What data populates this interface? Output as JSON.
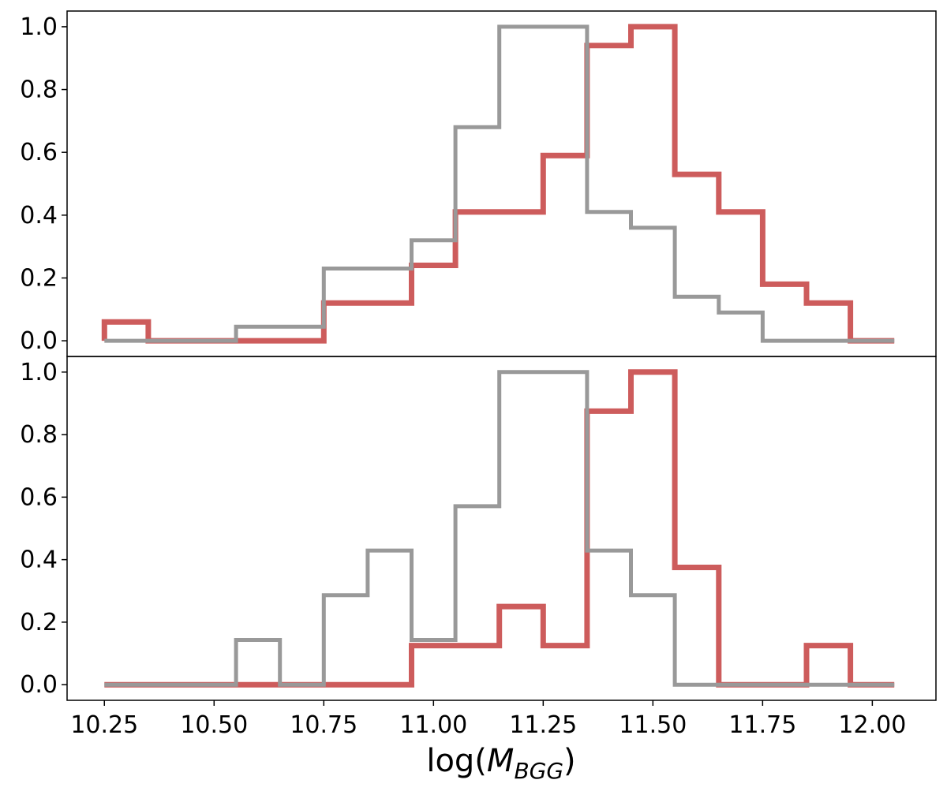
{
  "chart_data": [
    {
      "type": "line",
      "plot_style": "step histogram",
      "panel": "top",
      "bin_edges": [
        10.25,
        10.35,
        10.45,
        10.55,
        10.65,
        10.75,
        10.85,
        10.95,
        11.05,
        11.15,
        11.25,
        11.35,
        11.45,
        11.55,
        11.65,
        11.75,
        11.85,
        11.95,
        12.05
      ],
      "series": [
        {
          "color": "#cd5c5c",
          "values": [
            0.06,
            0.0,
            0.0,
            0.0,
            0.0,
            0.12,
            0.12,
            0.24,
            0.41,
            0.41,
            0.59,
            0.94,
            1.0,
            0.53,
            0.41,
            0.18,
            0.12,
            0.0
          ]
        },
        {
          "color": "#999999",
          "values": [
            0.0,
            0.0,
            0.0,
            0.045,
            0.045,
            0.23,
            0.23,
            0.32,
            0.68,
            1.0,
            1.0,
            0.41,
            0.36,
            0.14,
            0.09,
            0.0,
            0.0,
            0.0
          ]
        }
      ],
      "xlim": [
        10.165,
        12.145
      ],
      "ylim": [
        -0.05,
        1.05
      ],
      "yticks": [
        "0.0",
        "0.2",
        "0.4",
        "0.6",
        "0.8",
        "1.0"
      ],
      "xlabel": "",
      "ylabel": "",
      "grid": false
    },
    {
      "type": "line",
      "plot_style": "step histogram",
      "panel": "bottom",
      "bin_edges": [
        10.25,
        10.35,
        10.45,
        10.55,
        10.65,
        10.75,
        10.85,
        10.95,
        11.05,
        11.15,
        11.25,
        11.35,
        11.45,
        11.55,
        11.65,
        11.75,
        11.85,
        11.95,
        12.05
      ],
      "series": [
        {
          "color": "#cd5c5c",
          "values": [
            0.0,
            0.0,
            0.0,
            0.0,
            0.0,
            0.0,
            0.0,
            0.125,
            0.125,
            0.25,
            0.125,
            0.875,
            1.0,
            0.375,
            0.0,
            0.0,
            0.125,
            0.0
          ]
        },
        {
          "color": "#999999",
          "values": [
            0.0,
            0.0,
            0.0,
            0.143,
            0.0,
            0.286,
            0.429,
            0.143,
            0.571,
            1.0,
            1.0,
            0.429,
            0.286,
            0.0,
            0.0,
            0.0,
            0.0,
            0.0
          ]
        }
      ],
      "xlim": [
        10.165,
        12.145
      ],
      "ylim": [
        -0.05,
        1.05
      ],
      "yticks": [
        "0.0",
        "0.2",
        "0.4",
        "0.6",
        "0.8",
        "1.0"
      ],
      "xticks": [
        "10.25",
        "10.50",
        "10.75",
        "11.00",
        "11.25",
        "11.50",
        "11.75",
        "12.00"
      ],
      "xlabel_text": "log(",
      "xlabel_symbol": "M",
      "xlabel_subscript": "BGG",
      "xlabel_close": ")",
      "ylabel": "",
      "grid": false
    }
  ]
}
